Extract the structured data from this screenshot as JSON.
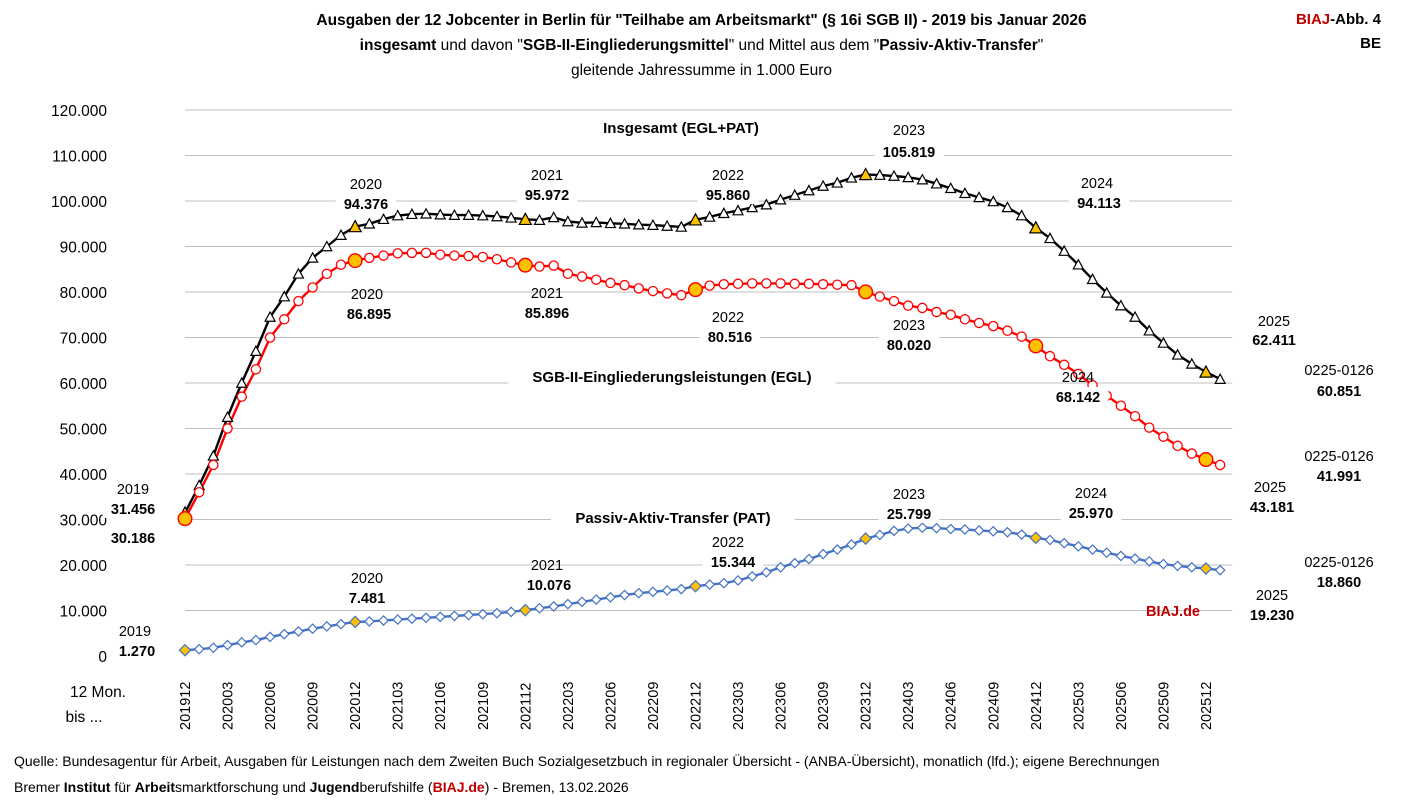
{
  "header": {
    "line1": "Ausgaben der 12 Jobcenter in Berlin für \"Teilhabe am Arbeitsmarkt\" (§ 16i SGB II) - 2019 bis Januar 2026",
    "line2_a": "insgesamt",
    "line2_b": " und davon \"",
    "line2_c": "SGB-II-Eingliederungsmittel",
    "line2_d": "\" und Mittel aus dem \"",
    "line2_e": "Passiv-Aktiv-Transfer",
    "line2_f": "\"",
    "line3": "gleitende  Jahressumme in 1.000 Euro"
  },
  "badge": {
    "brand_a": "BIAJ",
    "brand_b": "-Abb. 4",
    "region": "BE"
  },
  "footer": {
    "line1": "Quelle: Bundesagentur für Arbeit, Ausgaben für Leistungen nach dem Zweiten Buch Sozialgesetzbuch in regionaler Übersicht - (ANBA-Übersicht), monatlich (lfd.); eigene Berechnungen",
    "l2_a": "Bremer ",
    "l2_b": "Institut",
    "l2_c": " für ",
    "l2_d": "Arbeit",
    "l2_e": "smarktforschung und ",
    "l2_f": "Jugend",
    "l2_g": "berufshilfe (",
    "l2_h": "BIAJ.de",
    "l2_i": ") - Bremen, 13.02.2026"
  },
  "colors": {
    "total": "#000000",
    "egl": "#ff0000",
    "pat": "#4472c4",
    "marker": "#ffc000",
    "grid": "#bfbfbf",
    "brand": "#c00000"
  },
  "chart_data": {
    "type": "line",
    "title": "Ausgaben der 12 Jobcenter in Berlin für \"Teilhabe am Arbeitsmarkt\" (§ 16i SGB II) - 2019 bis Januar 2026",
    "ylabel": "gleitende Jahressumme in 1.000 Euro",
    "xlabel": "12 Mon. bis ...",
    "x_axis_label": [
      "12 Mon.",
      "bis ..."
    ],
    "ylim": [
      0,
      120000
    ],
    "y_ticks": [
      0,
      10000,
      20000,
      30000,
      40000,
      50000,
      60000,
      70000,
      80000,
      90000,
      100000,
      110000,
      120000
    ],
    "y_tick_labels": [
      "0",
      "10.000",
      "20.000",
      "30.000",
      "40.000",
      "50.000",
      "60.000",
      "70.000",
      "80.000",
      "90.000",
      "100.000",
      "110.000",
      "120.000"
    ],
    "x_tick_labels": [
      "201912",
      "202003",
      "202006",
      "202009",
      "202012",
      "202103",
      "202106",
      "202109",
      "202112",
      "202203",
      "202206",
      "202209",
      "202212",
      "202303",
      "202306",
      "202309",
      "202312",
      "202403",
      "202406",
      "202409",
      "202412",
      "202503",
      "202506",
      "202509",
      "202512"
    ],
    "x_tick_step": 3,
    "series": [
      {
        "name": "Insgesamt (EGL+PAT)",
        "key": "total",
        "values": [
          31456,
          37500,
          44000,
          52500,
          60000,
          67000,
          74500,
          79000,
          84000,
          87500,
          90000,
          92500,
          94376,
          95000,
          96000,
          96800,
          97100,
          97200,
          97000,
          96900,
          96900,
          96800,
          96600,
          96300,
          95972,
          95800,
          96400,
          95500,
          95200,
          95300,
          95100,
          95000,
          94800,
          94700,
          94500,
          94300,
          95860,
          96500,
          97300,
          97900,
          98600,
          99200,
          100300,
          101300,
          102300,
          103300,
          104000,
          105100,
          105819,
          105700,
          105500,
          105200,
          104700,
          103800,
          102800,
          101700,
          100800,
          99900,
          98600,
          96800,
          94113,
          91800,
          89000,
          86000,
          82800,
          79800,
          77000,
          74500,
          71500,
          68800,
          66200,
          64200,
          62411,
          60851
        ]
      },
      {
        "name": "SGB-II-Eingliederungsleistungen (EGL)",
        "key": "egl",
        "values": [
          30186,
          36000,
          42000,
          50000,
          57000,
          63000,
          70000,
          74000,
          78000,
          81000,
          84000,
          86000,
          86895,
          87500,
          88000,
          88500,
          88600,
          88600,
          88200,
          88000,
          87900,
          87700,
          87200,
          86500,
          85896,
          85600,
          85800,
          84000,
          83400,
          82700,
          82000,
          81500,
          80800,
          80200,
          79700,
          79300,
          80516,
          81400,
          81700,
          81800,
          81900,
          81900,
          81900,
          81800,
          81800,
          81700,
          81600,
          81500,
          80020,
          79000,
          78000,
          77000,
          76500,
          75600,
          75000,
          74000,
          73200,
          72500,
          71500,
          70200,
          68142,
          65900,
          64000,
          62000,
          59500,
          57200,
          55000,
          52700,
          50200,
          48200,
          46200,
          44500,
          43181,
          41991
        ]
      },
      {
        "name": "Passiv-Aktiv-Transfer (PAT)",
        "key": "pat",
        "values": [
          1270,
          1500,
          1800,
          2400,
          3000,
          3500,
          4200,
          4800,
          5400,
          6000,
          6500,
          7000,
          7481,
          7600,
          7800,
          8000,
          8200,
          8400,
          8600,
          8800,
          9000,
          9200,
          9400,
          9700,
          10076,
          10500,
          10900,
          11400,
          11900,
          12400,
          12900,
          13400,
          13800,
          14100,
          14400,
          14700,
          15344,
          15700,
          16000,
          16600,
          17500,
          18400,
          19500,
          20400,
          21300,
          22400,
          23400,
          24500,
          25799,
          26600,
          27500,
          28000,
          28200,
          28100,
          27900,
          27800,
          27600,
          27400,
          27200,
          26700,
          25970,
          25500,
          24800,
          24100,
          23400,
          22700,
          22000,
          21400,
          20800,
          20200,
          19800,
          19500,
          19230,
          18860
        ]
      }
    ],
    "highlight_indices": [
      0,
      12,
      24,
      36,
      48,
      60,
      72
    ],
    "data_labels": [
      {
        "series": "total",
        "year": "2019",
        "value": "31.456"
      },
      {
        "series": "total",
        "year": "2020",
        "value": "94.376"
      },
      {
        "series": "total",
        "year": "2021",
        "value": "95.972"
      },
      {
        "series": "total",
        "year": "2022",
        "value": "95.860"
      },
      {
        "series": "total",
        "year": "2023",
        "value": "105.819"
      },
      {
        "series": "total",
        "year": "2024",
        "value": "94.113"
      },
      {
        "series": "total",
        "year": "2025",
        "value": "62.411"
      },
      {
        "series": "total",
        "year": "0225-0126",
        "value": "60.851"
      },
      {
        "series": "egl",
        "year": "",
        "value": "30.186"
      },
      {
        "series": "egl",
        "year": "2020",
        "value": "86.895"
      },
      {
        "series": "egl",
        "year": "2021",
        "value": "85.896"
      },
      {
        "series": "egl",
        "year": "2022",
        "value": "80.516"
      },
      {
        "series": "egl",
        "year": "2023",
        "value": "80.020"
      },
      {
        "series": "egl",
        "year": "2024",
        "value": "68.142"
      },
      {
        "series": "egl",
        "year": "2025",
        "value": "43.181"
      },
      {
        "series": "egl",
        "year": "0225-0126",
        "value": "41.991"
      },
      {
        "series": "pat",
        "year": "2019",
        "value": "1.270"
      },
      {
        "series": "pat",
        "year": "2020",
        "value": "7.481"
      },
      {
        "series": "pat",
        "year": "2021",
        "value": "10.076"
      },
      {
        "series": "pat",
        "year": "2022",
        "value": "15.344"
      },
      {
        "series": "pat",
        "year": "2023",
        "value": "25.799"
      },
      {
        "series": "pat",
        "year": "2024",
        "value": "25.970"
      },
      {
        "series": "pat",
        "year": "2025",
        "value": "19.230"
      },
      {
        "series": "pat",
        "year": "0225-0126",
        "value": "18.860"
      }
    ],
    "series_titles": {
      "total": "Insgesamt (EGL+PAT)",
      "egl": "SGB-II-Eingliederungsleistungen (EGL)",
      "pat": "Passiv-Aktiv-Transfer (PAT)"
    },
    "watermark": "BIAJ.de"
  }
}
